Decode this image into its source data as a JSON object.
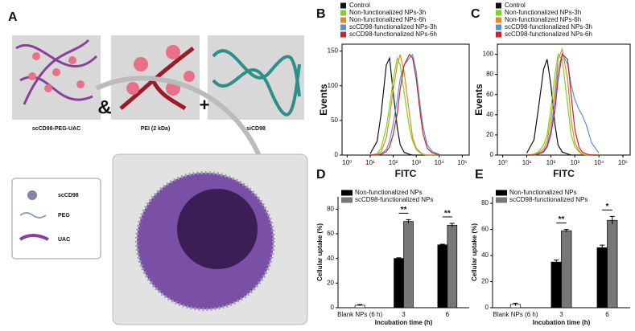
{
  "diagram": {
    "panel": "A",
    "labels": [
      "scCD98-PEG-UAC",
      "PEI (2 kDa)",
      "siCD98"
    ],
    "joiners": [
      "&",
      "+"
    ],
    "legend": [
      "scCD98",
      "PEG",
      "UAC"
    ]
  },
  "chart_data": [
    {
      "type": "histogram-line",
      "panel": "B",
      "x_label": "FITC",
      "y_label": "Events",
      "log_x": true,
      "xlim": [
        0.6,
        200000
      ],
      "ylim": [
        0,
        160
      ],
      "xticks": [
        {
          "value": 1,
          "label": "10⁰"
        },
        {
          "value": 10,
          "label": "10¹"
        },
        {
          "value": 100,
          "label": "10²"
        },
        {
          "value": 1000,
          "label": "10³"
        },
        {
          "value": 10000,
          "label": "10⁴"
        },
        {
          "value": 100000,
          "label": "10⁵"
        }
      ],
      "yticks": [
        0,
        50,
        100,
        150
      ],
      "x": [
        10,
        20,
        30,
        50,
        70,
        100,
        150,
        200,
        300,
        500,
        700,
        1000,
        1500,
        2000,
        3000,
        5000,
        10000
      ],
      "series": [
        {
          "name": "Control",
          "color": "#111111",
          "values": [
            2,
            20,
            60,
            130,
            140,
            90,
            40,
            15,
            4,
            1,
            0,
            0,
            0,
            0,
            0,
            0,
            0
          ]
        },
        {
          "name": "Non-functionalized NPs-3h",
          "color": "#7ed321",
          "values": [
            0,
            2,
            10,
            40,
            70,
            110,
            140,
            130,
            90,
            40,
            20,
            8,
            3,
            1,
            0,
            0,
            0
          ]
        },
        {
          "name": "Non-functionalized NPs-6h",
          "color": "#e08a2c",
          "values": [
            0,
            1,
            5,
            25,
            55,
            95,
            130,
            145,
            120,
            60,
            25,
            10,
            4,
            1,
            0,
            0,
            0
          ]
        },
        {
          "name": "scCD98-functionalized NPs-3h",
          "color": "#5b8fd6",
          "values": [
            0,
            0,
            2,
            8,
            20,
            45,
            80,
            110,
            130,
            140,
            145,
            120,
            70,
            40,
            15,
            5,
            1
          ]
        },
        {
          "name": "scCD98-functionalized NPs-6h",
          "color": "#c0282d",
          "values": [
            0,
            0,
            1,
            5,
            12,
            30,
            60,
            95,
            130,
            145,
            140,
            110,
            60,
            30,
            10,
            3,
            0
          ]
        }
      ]
    },
    {
      "type": "histogram-line",
      "panel": "C",
      "x_label": "FITC",
      "y_label": "Events",
      "log_x": true,
      "xlim": [
        0.6,
        200000
      ],
      "ylim": [
        0,
        110
      ],
      "xticks": [
        {
          "value": 1,
          "label": "10⁰"
        },
        {
          "value": 10,
          "label": "10¹"
        },
        {
          "value": 100,
          "label": "10²"
        },
        {
          "value": 1000,
          "label": "10³"
        },
        {
          "value": 10000,
          "label": "10⁴"
        },
        {
          "value": 100000,
          "label": "10⁵"
        }
      ],
      "yticks": [
        0,
        20,
        40,
        60,
        80,
        100
      ],
      "x": [
        10,
        20,
        30,
        50,
        70,
        100,
        150,
        200,
        300,
        500,
        700,
        1000,
        1500,
        2000,
        3000,
        5000,
        10000
      ],
      "series": [
        {
          "name": "Control",
          "color": "#111111",
          "values": [
            2,
            15,
            45,
            85,
            95,
            70,
            30,
            10,
            3,
            1,
            0,
            0,
            0,
            0,
            0,
            0,
            0
          ]
        },
        {
          "name": "Non-functionalized NPs-3h",
          "color": "#7ed321",
          "values": [
            0,
            1,
            3,
            10,
            20,
            45,
            80,
            100,
            95,
            50,
            20,
            8,
            3,
            1,
            0,
            0,
            0
          ]
        },
        {
          "name": "Non-functionalized NPs-6h",
          "color": "#e08a2c",
          "values": [
            0,
            0,
            2,
            6,
            14,
            35,
            65,
            95,
            105,
            75,
            35,
            12,
            4,
            1,
            0,
            0,
            0
          ]
        },
        {
          "name": "scCD98-functionalized NPs-3h",
          "color": "#5b8fd6",
          "values": [
            0,
            0,
            1,
            4,
            10,
            25,
            55,
            85,
            100,
            90,
            70,
            55,
            45,
            40,
            30,
            12,
            2
          ]
        },
        {
          "name": "scCD98-functionalized NPs-6h",
          "color": "#c0282d",
          "values": [
            0,
            0,
            1,
            3,
            8,
            20,
            45,
            75,
            100,
            95,
            60,
            25,
            8,
            3,
            1,
            0,
            0
          ]
        }
      ]
    },
    {
      "type": "bar",
      "panel": "D",
      "x_label": "Incubation time (h)",
      "y_label": "Cellular uptake (%)",
      "ylim": [
        0,
        90
      ],
      "yticks": [
        0,
        20,
        40,
        60,
        80
      ],
      "categories": [
        "Blank NPs (6 h)",
        "3",
        "6"
      ],
      "series": [
        {
          "name": "Non-functionalized NPs",
          "color": "#000000",
          "point_colors": [
            "#ffffff",
            "#000000",
            "#000000"
          ],
          "values": [
            2,
            40,
            51
          ],
          "errors": [
            0.5,
            0.5,
            0.5
          ]
        },
        {
          "name": "scCD98-functionalized NPs",
          "color": "#777777",
          "values": [
            null,
            70,
            67
          ],
          "errors": [
            null,
            1.5,
            1.5
          ]
        }
      ],
      "significance": [
        null,
        "**",
        "**"
      ]
    },
    {
      "type": "bar",
      "panel": "E",
      "x_label": "Incubation time (h)",
      "y_label": "Cellular uptake (%)",
      "ylim": [
        0,
        85
      ],
      "yticks": [
        0,
        20,
        40,
        60,
        80
      ],
      "categories": [
        "Blank NPs (6 h)",
        "3",
        "6"
      ],
      "series": [
        {
          "name": "Non-functionalized NPs",
          "color": "#000000",
          "point_colors": [
            "#ffffff",
            "#000000",
            "#000000"
          ],
          "values": [
            2.5,
            35,
            46
          ],
          "errors": [
            1,
            1.5,
            2
          ]
        },
        {
          "name": "scCD98-functionalized NPs",
          "color": "#777777",
          "values": [
            null,
            59,
            67
          ],
          "errors": [
            null,
            1,
            3
          ]
        }
      ],
      "significance": [
        null,
        "**",
        "*"
      ]
    }
  ]
}
